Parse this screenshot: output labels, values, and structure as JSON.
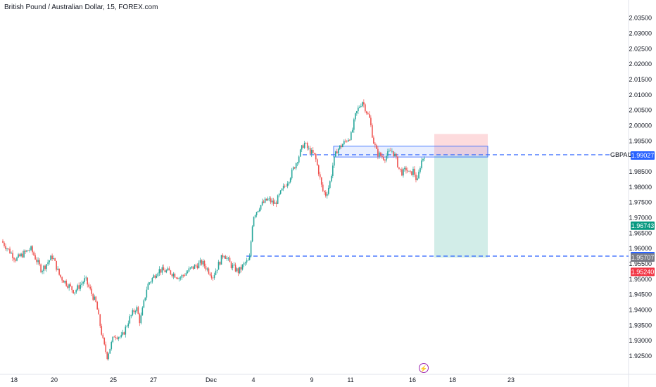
{
  "header": {
    "title": "British Pound / Australian Dollar, 15, FOREX.com"
  },
  "symbol": "GBPAUD",
  "events": {
    "icon": "lightning-bolt-icon"
  },
  "colors": {
    "up": "#26a69a",
    "down": "#ef5350",
    "dash": "#2962ff",
    "box_fill": "rgba(41,98,255,0.10)",
    "box_stroke": "#2962ff",
    "stop_zone": "rgba(242,54,69,0.18)",
    "target_zone": "rgba(8,153,129,0.18)"
  },
  "price_tags": [
    {
      "label": "1.99027",
      "value": 1.99027,
      "bg": "#2962ff"
    },
    {
      "label": "1.96743",
      "value": 1.96743,
      "bg": "#089981"
    },
    {
      "label": "1.95753",
      "value": 1.95753,
      "bg": "#2962ff"
    },
    {
      "label": "1.95707",
      "value": 1.95707,
      "bg": "#787b86"
    },
    {
      "label": "1.95240",
      "value": 1.9524,
      "bg": "#f23645"
    }
  ],
  "chart_data": {
    "type": "candlestick",
    "ylim": [
      1.9225,
      2.037
    ],
    "y_ticks": [
      "2.03500",
      "2.03000",
      "2.02500",
      "2.02000",
      "2.01500",
      "2.01000",
      "2.00500",
      "2.00000",
      "1.99500",
      "1.99053",
      "1.98500",
      "1.98000",
      "1.97500",
      "1.97000",
      "1.96500",
      "1.96000",
      "1.95500",
      "1.95000",
      "1.94500",
      "1.94000",
      "1.93500",
      "1.93000",
      "1.92500"
    ],
    "x_ticks": [
      "18",
      "20",
      "25",
      "27",
      "Dec",
      "4",
      "9",
      "11",
      "16",
      "18",
      "23"
    ],
    "symbol_line": {
      "label": "GBPAUD",
      "value": 1.99053
    },
    "price_path": [
      [
        0,
        1.9625
      ],
      [
        4,
        1.9565
      ],
      [
        8,
        1.96
      ],
      [
        11,
        1.953
      ],
      [
        14,
        1.9575
      ],
      [
        16,
        1.951
      ],
      [
        20,
        1.946
      ],
      [
        23,
        1.95
      ],
      [
        26,
        1.942
      ],
      [
        28,
        1.929
      ],
      [
        29,
        1.925
      ],
      [
        31,
        1.932
      ],
      [
        33,
        1.931
      ],
      [
        35,
        1.937
      ],
      [
        37,
        1.941
      ],
      [
        38,
        1.936
      ],
      [
        40,
        1.948
      ],
      [
        43,
        1.953
      ],
      [
        46,
        1.9525
      ],
      [
        49,
        1.9505
      ],
      [
        52,
        1.9535
      ],
      [
        55,
        1.9555
      ],
      [
        58,
        1.951
      ],
      [
        61,
        1.9585
      ],
      [
        63,
        1.9545
      ],
      [
        65,
        1.9525
      ],
      [
        67,
        1.9555
      ],
      [
        68,
        1.956
      ],
      [
        69,
        1.9705
      ],
      [
        71,
        1.974
      ],
      [
        73,
        1.976
      ],
      [
        75,
        1.9745
      ],
      [
        77,
        1.979
      ],
      [
        79,
        1.983
      ],
      [
        81,
        1.9885
      ],
      [
        83,
        1.9945
      ],
      [
        84,
        1.9925
      ],
      [
        86,
        1.99
      ],
      [
        87,
        1.985
      ],
      [
        88,
        1.979
      ],
      [
        89,
        1.9775
      ],
      [
        90,
        1.981
      ],
      [
        91,
        1.988
      ],
      [
        92,
        1.992
      ],
      [
        94,
        1.9945
      ],
      [
        96,
        1.997
      ],
      [
        97,
        2.003
      ],
      [
        98,
        2.006
      ],
      [
        99,
        2.008
      ],
      [
        100,
        2.005
      ],
      [
        101,
        2.002
      ],
      [
        102,
        1.995
      ],
      [
        103,
        1.991
      ],
      [
        105,
        1.9895
      ],
      [
        107,
        1.992
      ],
      [
        108,
        1.99
      ],
      [
        109,
        1.986
      ],
      [
        110,
        1.9845
      ],
      [
        111,
        1.986
      ],
      [
        112,
        1.984
      ],
      [
        113,
        1.9855
      ],
      [
        114,
        1.9815
      ],
      [
        115,
        1.988
      ],
      [
        116,
        1.9905
      ]
    ],
    "sell_box": {
      "top": 1.9933,
      "bottom": 1.9898
    },
    "position": {
      "entry": 1.99027,
      "stop": 1.9973,
      "target": 1.95707
    },
    "target_line": {
      "value": 1.95753
    }
  }
}
